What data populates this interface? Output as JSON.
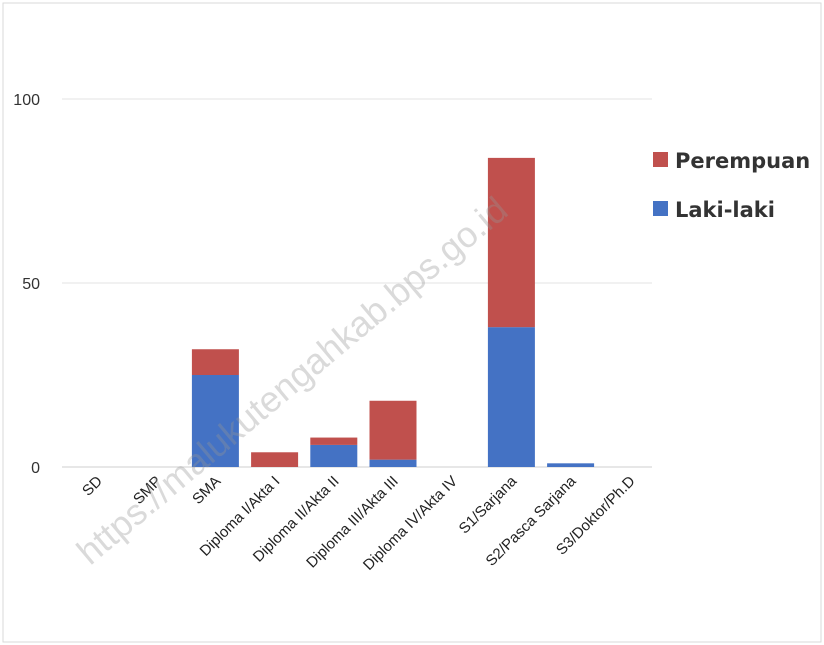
{
  "chart_data": {
    "type": "bar",
    "stacked": true,
    "categories": [
      "SD",
      "SMP",
      "SMA",
      "Diploma I/Akta I",
      "Diploma II/Akta II",
      "Diploma III/Akta III",
      "Diploma IV/Akta IV",
      "S1/Sarjana",
      "S2/Pasca Sarjana",
      "S3/Doktor/Ph.D"
    ],
    "series": [
      {
        "name": "Laki-laki",
        "color": "#4472C4",
        "values": [
          0,
          0,
          25,
          0,
          6,
          2,
          0,
          38,
          1,
          0
        ]
      },
      {
        "name": "Perempuan",
        "color": "#C0504D",
        "values": [
          0,
          0,
          7,
          4,
          2,
          16,
          0,
          46,
          0,
          0
        ]
      }
    ],
    "yticks": [
      0,
      50,
      100
    ],
    "ylim": [
      0,
      100
    ],
    "legend_order": [
      "Perempuan",
      "Laki-laki"
    ],
    "legend_position": "right",
    "grid": true
  },
  "watermark": "https://malukutengahkab.bps.go.id"
}
